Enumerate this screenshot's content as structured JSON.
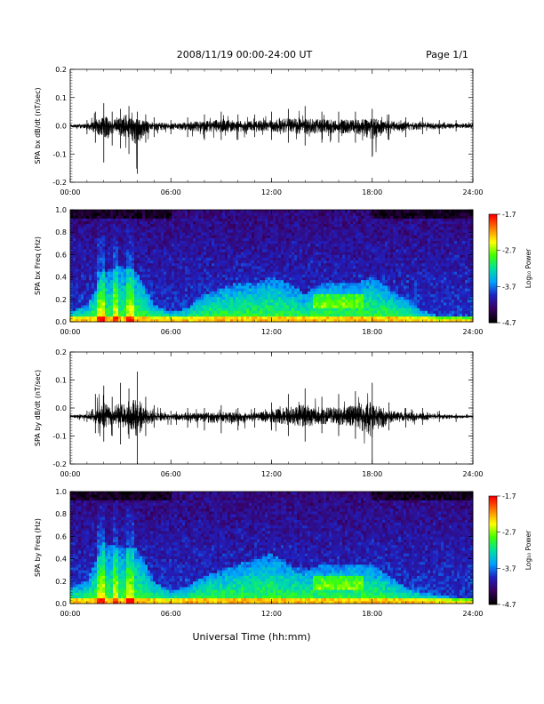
{
  "header": {
    "title": "2008/11/19  00:00-24:00 UT",
    "page": "Page 1/1"
  },
  "footer": {
    "xlabel": "Universal Time (hh:mm)"
  },
  "colors": {
    "trace": "#000000",
    "background": "#ffffff",
    "spectrogram_colormap": [
      "#000000",
      "#3a0060",
      "#2020c0",
      "#00a0ff",
      "#00e0a0",
      "#40ff00",
      "#ffff00",
      "#ff8000",
      "#ff0000"
    ]
  },
  "chart_data": [
    {
      "type": "line",
      "panel": "bx-waveform",
      "ylabel": "SPA bx dB/dt (nT/sec)",
      "x_ticks": [
        "00:00",
        "06:00",
        "12:00",
        "18:00",
        "24:00"
      ],
      "xlim_hours": [
        0,
        24
      ],
      "ylim": [
        -0.2,
        0.2
      ],
      "y_ticks": [
        "-0.2",
        "-0.1",
        "0.0",
        "0.1",
        "0.2"
      ],
      "baseline": 0.0,
      "envelope": {
        "x": [
          0,
          1,
          1.5,
          2,
          2.5,
          3,
          3.5,
          4,
          4.5,
          5,
          6,
          7,
          8,
          9,
          10,
          11,
          12,
          13,
          14,
          15,
          16,
          17,
          18,
          19,
          20,
          21,
          22,
          23,
          24
        ],
        "upper": [
          0.01,
          0.02,
          0.05,
          0.08,
          0.05,
          0.06,
          0.07,
          0.05,
          0.04,
          0.03,
          0.02,
          0.03,
          0.04,
          0.05,
          0.04,
          0.04,
          0.05,
          0.06,
          0.07,
          0.05,
          0.05,
          0.05,
          0.06,
          0.04,
          0.03,
          0.03,
          0.02,
          0.02,
          0.02
        ],
        "lower": [
          -0.01,
          -0.03,
          -0.06,
          -0.13,
          -0.07,
          -0.08,
          -0.1,
          -0.17,
          -0.06,
          -0.04,
          -0.03,
          -0.04,
          -0.05,
          -0.05,
          -0.05,
          -0.04,
          -0.05,
          -0.06,
          -0.07,
          -0.06,
          -0.06,
          -0.06,
          -0.11,
          -0.05,
          -0.04,
          -0.03,
          -0.03,
          -0.02,
          -0.02
        ]
      }
    },
    {
      "type": "heatmap",
      "panel": "bx-spectrogram",
      "ylabel": "SPA bx Freq (Hz)",
      "x_ticks": [
        "00:00",
        "06:00",
        "12:00",
        "18:00",
        "24:00"
      ],
      "xlim_hours": [
        0,
        24
      ],
      "ylim": [
        0.0,
        1.0
      ],
      "y_ticks": [
        "0.0",
        "0.2",
        "0.4",
        "0.6",
        "0.8",
        "1.0"
      ],
      "colorbar": {
        "label": "Log₁₀ Power",
        "range": [
          -4.7,
          -1.7
        ],
        "ticks": [
          "-1.7",
          "-2.7",
          "-3.7",
          "-4.7"
        ]
      },
      "hours": [
        0,
        1,
        2,
        3,
        4,
        5,
        6,
        7,
        8,
        9,
        10,
        11,
        12,
        13,
        14,
        15,
        16,
        17,
        18,
        19,
        20,
        21,
        22,
        23,
        24
      ],
      "max_freq_of_enhanced_power_hz": [
        0.1,
        0.15,
        0.45,
        0.5,
        0.45,
        0.15,
        0.1,
        0.12,
        0.25,
        0.3,
        0.35,
        0.35,
        0.4,
        0.35,
        0.25,
        0.35,
        0.35,
        0.35,
        0.4,
        0.3,
        0.2,
        0.1,
        0.05,
        0.05,
        0.05
      ]
    },
    {
      "type": "line",
      "panel": "by-waveform",
      "ylabel": "SPA by dB/dt (nT/sec)",
      "x_ticks": [
        "00:00",
        "06:00",
        "12:00",
        "18:00",
        "24:00"
      ],
      "xlim_hours": [
        0,
        24
      ],
      "ylim": [
        -0.2,
        0.2
      ],
      "y_ticks": [
        "-0.2",
        "-0.1",
        "0.0",
        "0.1",
        "0.2"
      ],
      "baseline": -0.03,
      "envelope": {
        "x": [
          0,
          1,
          1.5,
          2,
          2.5,
          3,
          3.5,
          4,
          4.5,
          5,
          6,
          7,
          8,
          9,
          10,
          11,
          12,
          13,
          14,
          15,
          16,
          17,
          18,
          19,
          20,
          21,
          22,
          23,
          24
        ],
        "upper": [
          -0.02,
          -0.01,
          0.05,
          0.08,
          0.04,
          0.09,
          0.07,
          0.13,
          0.04,
          0.01,
          -0.01,
          0.0,
          0.0,
          0.01,
          0.0,
          0.0,
          0.02,
          0.05,
          0.07,
          0.04,
          0.05,
          0.06,
          0.09,
          0.02,
          0.0,
          0.0,
          -0.01,
          -0.02,
          -0.02
        ],
        "lower": [
          -0.04,
          -0.05,
          -0.09,
          -0.12,
          -0.1,
          -0.13,
          -0.11,
          -0.2,
          -0.1,
          -0.07,
          -0.06,
          -0.07,
          -0.08,
          -0.09,
          -0.08,
          -0.07,
          -0.08,
          -0.1,
          -0.12,
          -0.09,
          -0.1,
          -0.11,
          -0.2,
          -0.08,
          -0.07,
          -0.06,
          -0.05,
          -0.05,
          -0.04
        ]
      }
    },
    {
      "type": "heatmap",
      "panel": "by-spectrogram",
      "ylabel": "SPA by Freq (Hz)",
      "x_ticks": [
        "00:00",
        "06:00",
        "12:00",
        "18:00",
        "24:00"
      ],
      "xlim_hours": [
        0,
        24
      ],
      "ylim": [
        0.0,
        1.0
      ],
      "y_ticks": [
        "0.0",
        "0.2",
        "0.4",
        "0.6",
        "0.8",
        "1.0"
      ],
      "colorbar": {
        "label": "Log₁₀ Power",
        "range": [
          -4.7,
          -1.7
        ],
        "ticks": [
          "-1.7",
          "-2.7",
          "-3.7",
          "-4.7"
        ]
      },
      "hours": [
        0,
        1,
        2,
        3,
        4,
        5,
        6,
        7,
        8,
        9,
        10,
        11,
        12,
        13,
        14,
        15,
        16,
        17,
        18,
        19,
        20,
        21,
        22,
        23,
        24
      ],
      "max_freq_of_enhanced_power_hz": [
        0.15,
        0.2,
        0.55,
        0.5,
        0.5,
        0.2,
        0.12,
        0.15,
        0.25,
        0.3,
        0.35,
        0.4,
        0.45,
        0.35,
        0.3,
        0.35,
        0.35,
        0.35,
        0.35,
        0.25,
        0.15,
        0.1,
        0.08,
        0.05,
        0.05
      ]
    }
  ]
}
